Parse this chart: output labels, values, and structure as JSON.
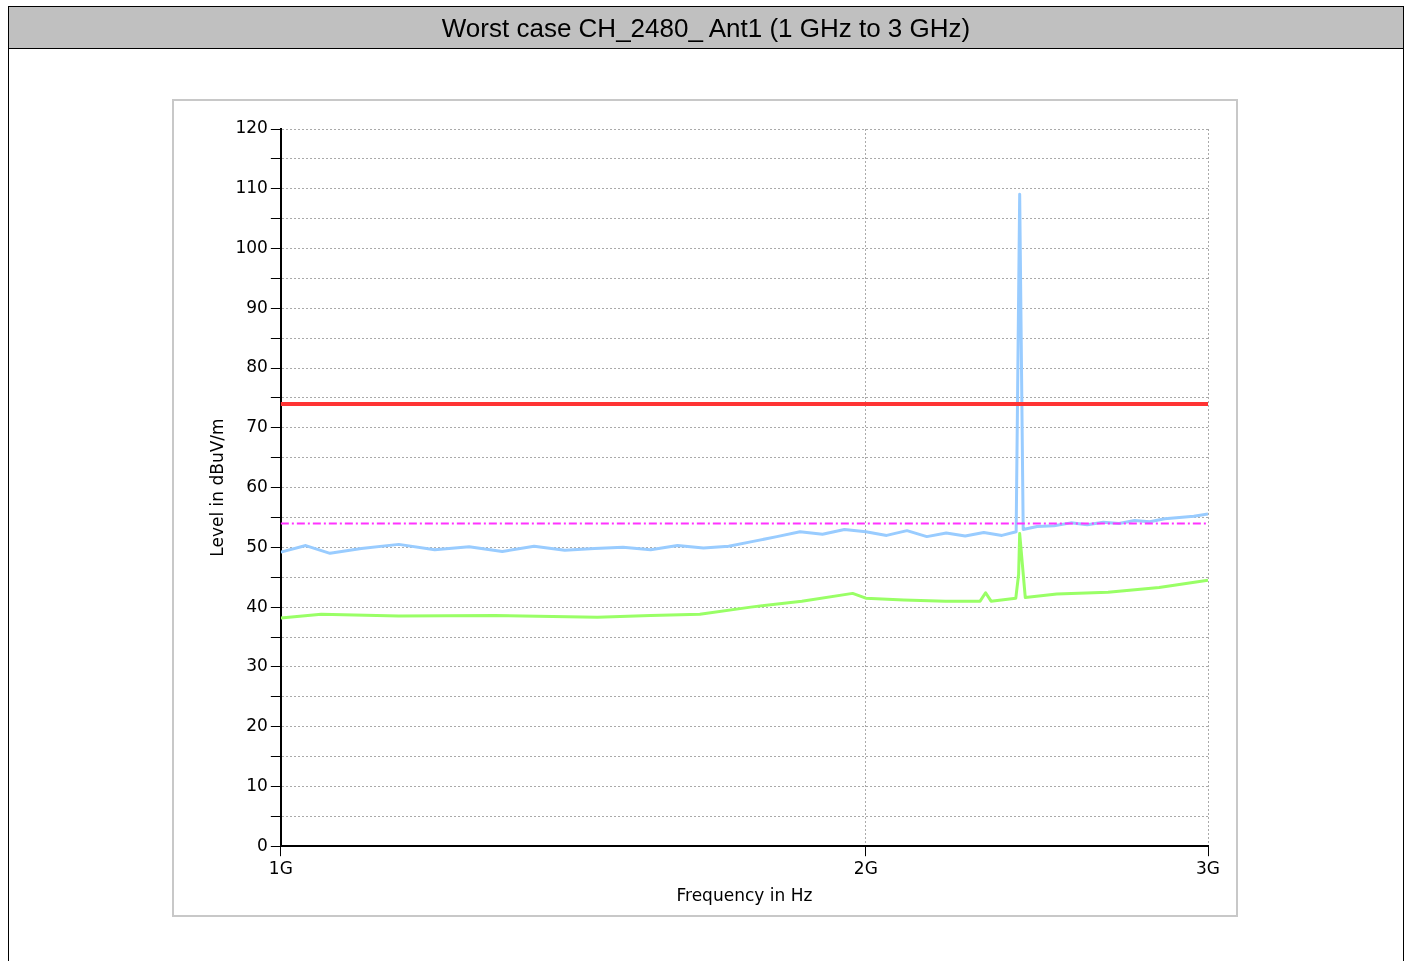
{
  "chart_data": {
    "type": "line",
    "title": "Worst case CH_2480_ Ant1 (1 GHz to 3 GHz)",
    "xlabel": "Frequency in Hz",
    "ylabel": "Level in dBuV/m",
    "log": "x",
    "xlim": [
      1,
      3
    ],
    "xticks": [
      {
        "value": 1,
        "label": "1G"
      },
      {
        "value": 2,
        "label": "2G"
      },
      {
        "value": 3,
        "label": "3G"
      }
    ],
    "ylim": [
      0,
      120
    ],
    "yticks": [
      0,
      {
        "value": 5,
        "label": null
      },
      10,
      {
        "value": 15,
        "label": null
      },
      20,
      {
        "value": 25,
        "label": null
      },
      30,
      {
        "value": 35,
        "label": null
      },
      40,
      {
        "value": 45,
        "label": null
      },
      50,
      {
        "value": 55,
        "label": null
      },
      60,
      {
        "value": 65,
        "label": null
      },
      70,
      {
        "value": 75,
        "label": null
      },
      80,
      {
        "value": 85,
        "label": null
      },
      90,
      {
        "value": 95,
        "label": null
      },
      100,
      {
        "value": 105,
        "label": null
      },
      110,
      {
        "value": 115,
        "label": null
      },
      120
    ],
    "grid": true,
    "legend": false,
    "marker": "none",
    "line_style": "solid",
    "series": [
      {
        "color": "#99ccff",
        "x": [
          1,
          1.03,
          1.06,
          1.1,
          1.15,
          1.2,
          1.25,
          1.3,
          1.35,
          1.4,
          1.45,
          1.5,
          1.55,
          1.6,
          1.65,
          1.7,
          1.75,
          1.8,
          1.85,
          1.9,
          1.95,
          2,
          2.05,
          2.1,
          2.15,
          2.2,
          2.25,
          2.3,
          2.35,
          2.39,
          2.4,
          2.41,
          2.45,
          2.5,
          2.55,
          2.6,
          2.65,
          2.7,
          2.75,
          2.8,
          2.85,
          2.9,
          2.95,
          3
        ],
        "values": [
          49.2,
          50.3,
          49.0,
          49.8,
          50.5,
          49.6,
          50.1,
          49.3,
          50.2,
          49.5,
          49.8,
          50.0,
          49.6,
          50.3,
          49.9,
          50.2,
          51.0,
          51.8,
          52.6,
          52.2,
          53.0,
          52.6,
          52.0,
          52.8,
          51.8,
          52.4,
          51.9,
          52.5,
          52.0,
          52.6,
          109.1,
          53.0,
          53.5,
          53.6,
          54.1,
          53.8,
          54.2,
          54.0,
          54.5,
          54.3,
          54.8,
          55.0,
          55.2,
          55.6
        ]
      },
      {
        "color": "#99ff66",
        "x": [
          1,
          1.049,
          1.15,
          1.289,
          1.455,
          1.55,
          1.643,
          1.745,
          1.854,
          1.969,
          2,
          2.092,
          2.198,
          2.29,
          2.305,
          2.32,
          2.389,
          2.397,
          2.4,
          2.416,
          2.508,
          2.665,
          2.831,
          3
        ],
        "values": [
          38.2,
          38.8,
          38.5,
          38.6,
          38.3,
          38.6,
          38.8,
          40.0,
          41.0,
          42.3,
          41.5,
          41.2,
          41.0,
          41.0,
          42.4,
          41.0,
          41.5,
          45.5,
          52.3,
          41.6,
          42.2,
          42.5,
          43.3,
          44.5
        ]
      }
    ],
    "ref_lines": [
      {
        "axis": "y",
        "value": 74,
        "color": "#ff3333",
        "line_style": "solid"
      },
      {
        "axis": "y",
        "value": 54,
        "color": "#ff33ff",
        "line_style": "dashed"
      }
    ]
  }
}
